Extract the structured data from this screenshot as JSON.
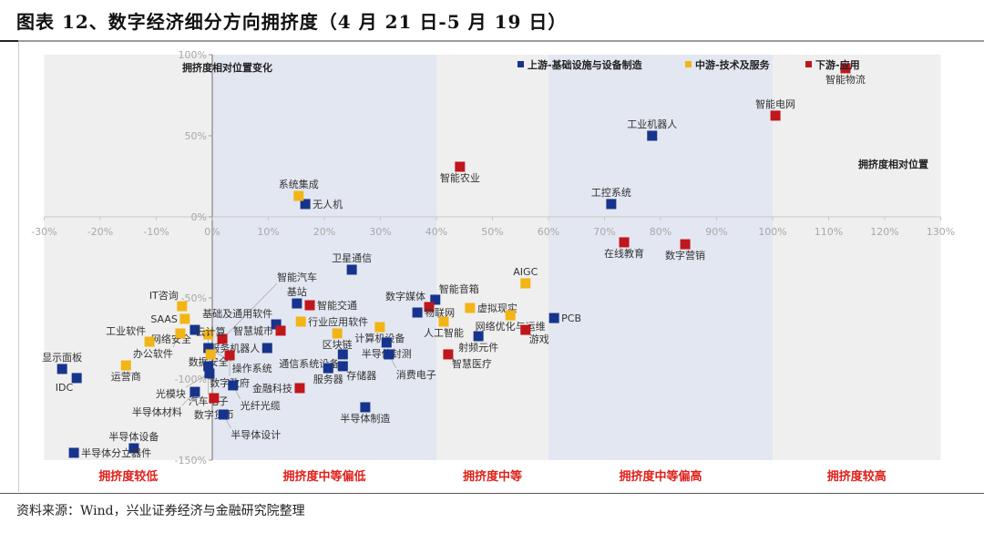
{
  "title": "图表 12、数字经济细分方向拥挤度（4 月 21 日-5 月 19 日）",
  "footer": "资料来源：Wind，兴业证券经济与金融研究院整理",
  "colors": {
    "upstream": "#17348c",
    "midstream": "#f2b515",
    "downstream": "#c0161c",
    "band_gray": "#efefef",
    "band_blue": "#e3e7f1"
  },
  "chart_data": {
    "type": "scatter",
    "title": "数字经济细分方向拥挤度",
    "xlabel": "拥挤度相对位置",
    "ylabel": "拥挤度相对位置变化",
    "xlim": [
      -30,
      130
    ],
    "ylim": [
      -150,
      100
    ],
    "x_ticks": [
      -30,
      -20,
      -10,
      0,
      10,
      20,
      30,
      40,
      50,
      60,
      70,
      80,
      90,
      100,
      110,
      120,
      130
    ],
    "x_tick_labels": [
      "-30%",
      "-20%",
      "-10%",
      "0%",
      "10%",
      "20%",
      "30%",
      "40%",
      "50%",
      "60%",
      "70%",
      "80%",
      "90%",
      "100%",
      "110%",
      "120%",
      "130%"
    ],
    "y_ticks": [
      100,
      50,
      0,
      -50,
      -100,
      -150
    ],
    "y_tick_labels": [
      "100%",
      "50%",
      "0%",
      "-50%",
      "-100%",
      "-150%"
    ],
    "legend_position": "top-right",
    "legend": [
      {
        "key": "upstream",
        "label": "上游-基础设施与设备制造"
      },
      {
        "key": "midstream",
        "label": "中游-技术及服务"
      },
      {
        "key": "downstream",
        "label": "下游-应用"
      }
    ],
    "bands": [
      {
        "range": [
          -30,
          0
        ],
        "label": "拥挤度较低",
        "shade": "gray"
      },
      {
        "range": [
          0,
          40
        ],
        "label": "拥挤度中等偏低",
        "shade": "blue"
      },
      {
        "range": [
          40,
          60
        ],
        "label": "拥挤度中等",
        "shade": "gray"
      },
      {
        "range": [
          60,
          100
        ],
        "label": "拥挤度中等偏高",
        "shade": "blue"
      },
      {
        "range": [
          100,
          130
        ],
        "label": "拥挤度较高",
        "shade": "gray"
      }
    ],
    "points": [
      {
        "name": "无人机",
        "series": "upstream",
        "x": 16.6,
        "y": 7.9,
        "pos": "r"
      },
      {
        "name": "系统集成",
        "series": "midstream",
        "x": 15.4,
        "y": 12.9,
        "pos": "t"
      },
      {
        "name": "智能农业",
        "series": "downstream",
        "x": 44.2,
        "y": 30.9,
        "pos": "b"
      },
      {
        "name": "工业机器人",
        "series": "upstream",
        "x": 78.5,
        "y": 50.0,
        "pos": "t"
      },
      {
        "name": "工控系统",
        "series": "upstream",
        "x": 71.2,
        "y": 7.9,
        "pos": "t"
      },
      {
        "name": "智能电网",
        "series": "downstream",
        "x": 100.5,
        "y": 62.4,
        "pos": "t"
      },
      {
        "name": "智能物流",
        "series": "downstream",
        "x": 113.0,
        "y": 91.6,
        "pos": "b"
      },
      {
        "name": "在线教育",
        "series": "downstream",
        "x": 73.5,
        "y": -15.7,
        "pos": "b"
      },
      {
        "name": "数字营销",
        "series": "downstream",
        "x": 84.4,
        "y": -16.9,
        "pos": "b"
      },
      {
        "name": "卫星通信",
        "series": "upstream",
        "x": 24.9,
        "y": -32.6,
        "pos": "t"
      },
      {
        "name": "AIGC",
        "series": "midstream",
        "x": 55.9,
        "y": -41.0,
        "pos": "t"
      },
      {
        "name": "基站",
        "series": "upstream",
        "x": 15.1,
        "y": -53.4,
        "pos": "t"
      },
      {
        "name": "智能交通",
        "series": "downstream",
        "x": 17.4,
        "y": -54.5,
        "pos": "r"
      },
      {
        "name": "智能音箱",
        "series": "upstream",
        "x": 39.8,
        "y": -51.1,
        "pos": "tr"
      },
      {
        "name": "数字媒体",
        "series": "downstream",
        "x": 38.7,
        "y": -55.6,
        "pos": "tl"
      },
      {
        "name": "物联网",
        "series": "upstream",
        "x": 36.6,
        "y": -59.0,
        "pos": "tl"
      },
      {
        "name": "虚拟现实",
        "series": "midstream",
        "x": 46.0,
        "y": -56.2,
        "pos": "t"
      },
      {
        "name": "网络优化与运维",
        "series": "midstream",
        "x": 53.2,
        "y": -60.7,
        "pos": "tr"
      },
      {
        "name": "PCB",
        "series": "upstream",
        "x": 61.0,
        "y": -62.4,
        "pos": "r"
      },
      {
        "name": "人工智能",
        "series": "midstream",
        "x": 41.3,
        "y": -64.6,
        "pos": "r"
      },
      {
        "name": "行业应用软件",
        "series": "midstream",
        "x": 15.8,
        "y": -64.6,
        "pos": "r"
      },
      {
        "name": "基础及通用软件",
        "series": "upstream",
        "x": 11.4,
        "y": -66.3,
        "pos": "tl"
      },
      {
        "name": "智慧城市",
        "series": "downstream",
        "x": 12.2,
        "y": -70.2,
        "pos": "l"
      },
      {
        "name": "计算机设备",
        "series": "midstream",
        "x": 29.9,
        "y": -68.0,
        "pos": "r"
      },
      {
        "name": "游戏",
        "series": "downstream",
        "x": 55.9,
        "y": -69.7,
        "pos": "br"
      },
      {
        "name": "射频元件",
        "series": "upstream",
        "x": 47.5,
        "y": -73.6,
        "pos": "t"
      },
      {
        "name": "区块链",
        "series": "midstream",
        "x": 22.3,
        "y": -71.9,
        "pos": "l"
      },
      {
        "name": "半导体封测",
        "series": "upstream",
        "x": 31.1,
        "y": -77.5,
        "pos": "r"
      },
      {
        "name": "服务机器人",
        "series": "upstream",
        "x": 9.8,
        "y": -80.9,
        "pos": "r"
      },
      {
        "name": "通信系统设备",
        "series": "upstream",
        "x": 23.3,
        "y": -84.8,
        "pos": "t"
      },
      {
        "name": "消费电子",
        "series": "upstream",
        "x": 31.5,
        "y": -84.8,
        "pos": "b"
      },
      {
        "name": "智慧医疗",
        "series": "downstream",
        "x": 42.1,
        "y": -84.8,
        "pos": "br"
      },
      {
        "name": "服务器",
        "series": "upstream",
        "x": 20.7,
        "y": -93.3,
        "pos": "l"
      },
      {
        "name": "存储器",
        "series": "upstream",
        "x": 23.3,
        "y": -92.1,
        "pos": "b"
      },
      {
        "name": "金融科技",
        "series": "downstream",
        "x": 15.6,
        "y": -105.6,
        "pos": "r"
      },
      {
        "name": "半导体制造",
        "series": "upstream",
        "x": 27.3,
        "y": -117.4,
        "pos": "b"
      },
      {
        "name": "IT咨询",
        "series": "midstream",
        "x": -5.4,
        "y": -55.1,
        "pos": "tl"
      },
      {
        "name": "SAAS",
        "series": "midstream",
        "x": -4.9,
        "y": -62.9,
        "pos": "l"
      },
      {
        "name": "网络安全",
        "series": "upstream",
        "x": -3.1,
        "y": -69.7,
        "pos": "tr"
      },
      {
        "name": "办公软件",
        "series": "midstream",
        "x": -5.7,
        "y": -71.9,
        "pos": "l"
      },
      {
        "name": "数据安全",
        "series": "midstream",
        "x": -0.7,
        "y": -72.5,
        "pos": "bl"
      },
      {
        "name": "智能汽车",
        "series": "downstream",
        "x": 1.8,
        "y": -75.3,
        "pos": "tr"
      },
      {
        "name": "工业软件",
        "series": "midstream",
        "x": -11.2,
        "y": -77.0,
        "pos": "bl"
      },
      {
        "name": "操作系统",
        "series": "upstream",
        "x": -0.7,
        "y": -80.9,
        "pos": "l"
      },
      {
        "name": "云计算",
        "series": "midstream",
        "x": -0.3,
        "y": -84.8,
        "pos": "br"
      },
      {
        "name": "数字政府",
        "series": "downstream",
        "x": 3.1,
        "y": -85.4,
        "pos": "r"
      },
      {
        "name": "运营商",
        "series": "midstream",
        "x": -15.4,
        "y": -91.6,
        "pos": "b"
      },
      {
        "name": "显示面板",
        "series": "upstream",
        "x": -26.8,
        "y": -93.8,
        "pos": "t"
      },
      {
        "name": "IDC",
        "series": "upstream",
        "x": -24.2,
        "y": -99.4,
        "pos": "bl"
      },
      {
        "name": "汽车电子",
        "series": "upstream",
        "x": -0.7,
        "y": -92.1,
        "pos": "l"
      },
      {
        "name": "光模块",
        "series": "upstream",
        "x": -0.5,
        "y": -96.6,
        "pos": "bl"
      },
      {
        "name": "光纤光缆",
        "series": "upstream",
        "x": 3.7,
        "y": -103.9,
        "pos": "br"
      },
      {
        "name": "半导体材料",
        "series": "upstream",
        "x": -3.1,
        "y": -107.9,
        "pos": "bl"
      },
      {
        "name": "数字货币",
        "series": "downstream",
        "x": 0.3,
        "y": -111.8,
        "pos": "br"
      },
      {
        "name": "半导体设计",
        "series": "upstream",
        "x": 2.0,
        "y": -121.9,
        "pos": "br"
      },
      {
        "name": "半导体设备",
        "series": "upstream",
        "x": -14.0,
        "y": -142.7,
        "pos": "t"
      },
      {
        "name": "半导体分立器件",
        "series": "upstream",
        "x": -24.7,
        "y": -145.5,
        "pos": "t"
      }
    ]
  }
}
